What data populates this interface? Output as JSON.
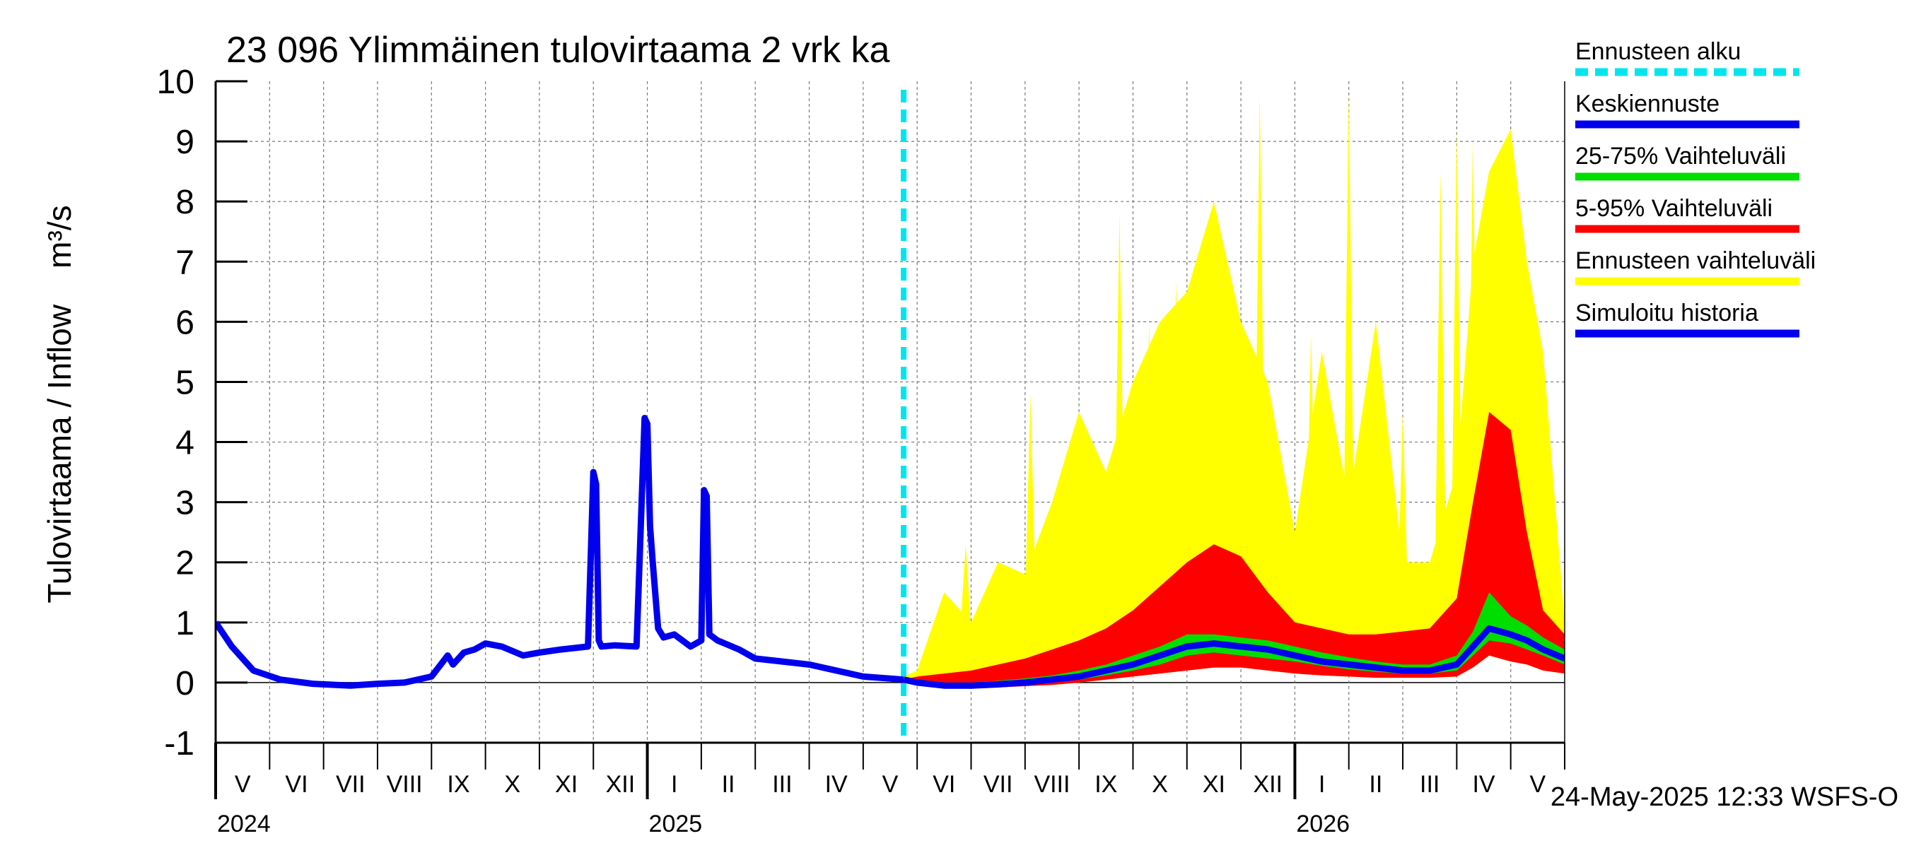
{
  "chart_data": {
    "type": "area",
    "title": "23 096 Ylimmäinen tulovirtaama 2 vrk ka",
    "ylabel": "Tulovirtaama / Inflow    m³/s",
    "ylim": [
      -1,
      10
    ],
    "yticks": [
      "-1",
      "0",
      "1",
      "2",
      "3",
      "4",
      "5",
      "6",
      "7",
      "8",
      "9",
      "10"
    ],
    "x_range_months": [
      0,
      25
    ],
    "month_labels": [
      "V",
      "VI",
      "VII",
      "VIII",
      "IX",
      "X",
      "XI",
      "XII",
      "I",
      "II",
      "III",
      "IV",
      "V",
      "VI",
      "VII",
      "VIII",
      "IX",
      "X",
      "XI",
      "XII",
      "I",
      "II",
      "III",
      "IV",
      "V"
    ],
    "year_labels": [
      {
        "label": "2024",
        "month_index": 0
      },
      {
        "label": "2025",
        "month_index": 8
      },
      {
        "label": "2026",
        "month_index": 20
      }
    ],
    "forecast_start_month": 12.75,
    "timestamp": "24-May-2025 12:33 WSFS-O",
    "legend": [
      {
        "label": "Ennusteen alku",
        "color": "#00e5ee",
        "dashed": true
      },
      {
        "label": "Keskiennuste",
        "color": "#0000ee"
      },
      {
        "label": "25-75% Vaihteluväli",
        "color": "#00dd00"
      },
      {
        "label": "5-95% Vaihteluväli",
        "color": "#ff0000"
      },
      {
        "label": "Ennusteen vaihteluväli",
        "color": "#ffff00"
      },
      {
        "label": "Simuloitu historia",
        "color": "#0000ee"
      }
    ],
    "colors": {
      "history": "#0000ee",
      "median": "#0000ee",
      "band_25_75": "#00dd00",
      "band_5_95": "#ff0000",
      "band_full": "#ffff00",
      "forecast_start": "#00e5ee"
    },
    "history": {
      "x": [
        0,
        0.3,
        0.7,
        1.2,
        1.8,
        2.5,
        3.0,
        3.5,
        4.0,
        4.3,
        4.4,
        4.6,
        4.8,
        5.0,
        5.3,
        5.7,
        6.0,
        6.4,
        6.9,
        7.0,
        7.05,
        7.1,
        7.15,
        7.4,
        7.8,
        7.95,
        8.0,
        8.05,
        8.1,
        8.2,
        8.3,
        8.5,
        8.8,
        9.0,
        9.05,
        9.1,
        9.15,
        9.3,
        9.7,
        10.0,
        10.5,
        11.0,
        11.5,
        12.0,
        12.75
      ],
      "y": [
        1.0,
        0.6,
        0.2,
        0.05,
        -0.02,
        -0.05,
        -0.02,
        0.0,
        0.1,
        0.45,
        0.3,
        0.5,
        0.55,
        0.65,
        0.6,
        0.45,
        0.5,
        0.55,
        0.6,
        3.5,
        3.3,
        0.7,
        0.6,
        0.62,
        0.6,
        4.4,
        4.3,
        2.6,
        2.0,
        0.9,
        0.75,
        0.8,
        0.6,
        0.7,
        3.2,
        3.1,
        0.8,
        0.7,
        0.55,
        0.4,
        0.35,
        0.3,
        0.2,
        0.1,
        0.05
      ]
    },
    "forecast": {
      "x": [
        12.75,
        13.0,
        13.5,
        14.0,
        14.5,
        15.0,
        15.5,
        16.0,
        16.5,
        17.0,
        17.5,
        18.0,
        18.5,
        19.0,
        19.5,
        20.0,
        20.5,
        21.0,
        21.5,
        22.0,
        22.5,
        23.0,
        23.3,
        23.6,
        24.0,
        24.3,
        24.6,
        25.0
      ],
      "median": [
        0.05,
        0.0,
        -0.05,
        -0.05,
        -0.03,
        0.0,
        0.05,
        0.1,
        0.2,
        0.3,
        0.45,
        0.6,
        0.65,
        0.6,
        0.55,
        0.45,
        0.35,
        0.3,
        0.25,
        0.2,
        0.2,
        0.3,
        0.6,
        0.9,
        0.8,
        0.7,
        0.55,
        0.4
      ],
      "p25": [
        0.05,
        -0.02,
        -0.07,
        -0.07,
        -0.05,
        -0.02,
        0.02,
        0.05,
        0.12,
        0.2,
        0.3,
        0.45,
        0.5,
        0.45,
        0.4,
        0.35,
        0.28,
        0.22,
        0.18,
        0.15,
        0.15,
        0.2,
        0.45,
        0.7,
        0.65,
        0.55,
        0.45,
        0.3
      ],
      "p75": [
        0.05,
        0.03,
        0.0,
        0.0,
        0.03,
        0.07,
        0.12,
        0.2,
        0.3,
        0.45,
        0.6,
        0.8,
        0.8,
        0.75,
        0.7,
        0.6,
        0.5,
        0.42,
        0.35,
        0.3,
        0.3,
        0.45,
        0.85,
        1.5,
        1.1,
        0.95,
        0.75,
        0.55
      ],
      "p5": [
        0.05,
        -0.05,
        -0.1,
        -0.1,
        -0.08,
        -0.06,
        -0.04,
        0.0,
        0.05,
        0.1,
        0.15,
        0.2,
        0.25,
        0.25,
        0.2,
        0.15,
        0.12,
        0.1,
        0.08,
        0.08,
        0.08,
        0.1,
        0.25,
        0.45,
        0.35,
        0.3,
        0.2,
        0.15
      ],
      "p95": [
        0.05,
        0.1,
        0.15,
        0.2,
        0.3,
        0.4,
        0.55,
        0.7,
        0.9,
        1.2,
        1.6,
        2.0,
        2.3,
        2.1,
        1.5,
        1.0,
        0.9,
        0.8,
        0.8,
        0.85,
        0.9,
        1.4,
        3.0,
        4.5,
        4.2,
        2.5,
        1.2,
        0.8
      ],
      "max": [
        0.1,
        0.2,
        1.5,
        1.0,
        2.0,
        1.8,
        3.0,
        4.5,
        3.5,
        5.0,
        6.0,
        6.5,
        8.0,
        6.0,
        5.0,
        2.5,
        5.5,
        3.0,
        6.0,
        2.0,
        2.0,
        3.5,
        7.0,
        8.5,
        9.2,
        7.0,
        5.5,
        1.0
      ]
    },
    "yellow_spikes": [
      {
        "x": 13.9,
        "y": 2.3
      },
      {
        "x": 14.4,
        "y": 1.5
      },
      {
        "x": 15.1,
        "y": 4.8
      },
      {
        "x": 15.3,
        "y": 1.7
      },
      {
        "x": 16.75,
        "y": 7.8
      },
      {
        "x": 17.3,
        "y": 6.0
      },
      {
        "x": 17.6,
        "y": 5.2
      },
      {
        "x": 17.8,
        "y": 6.7
      },
      {
        "x": 18.1,
        "y": 6.4
      },
      {
        "x": 18.35,
        "y": 7.5
      },
      {
        "x": 18.6,
        "y": 7.1
      },
      {
        "x": 19.0,
        "y": 5.0
      },
      {
        "x": 19.35,
        "y": 9.8
      },
      {
        "x": 19.6,
        "y": 4.0
      },
      {
        "x": 20.3,
        "y": 5.8
      },
      {
        "x": 21.0,
        "y": 9.8
      },
      {
        "x": 21.4,
        "y": 2.5
      },
      {
        "x": 22.0,
        "y": 4.5
      },
      {
        "x": 22.7,
        "y": 8.5
      },
      {
        "x": 23.0,
        "y": 9.2
      },
      {
        "x": 23.3,
        "y": 9.1
      },
      {
        "x": 23.55,
        "y": 7.8
      },
      {
        "x": 23.8,
        "y": 5.8
      }
    ]
  }
}
